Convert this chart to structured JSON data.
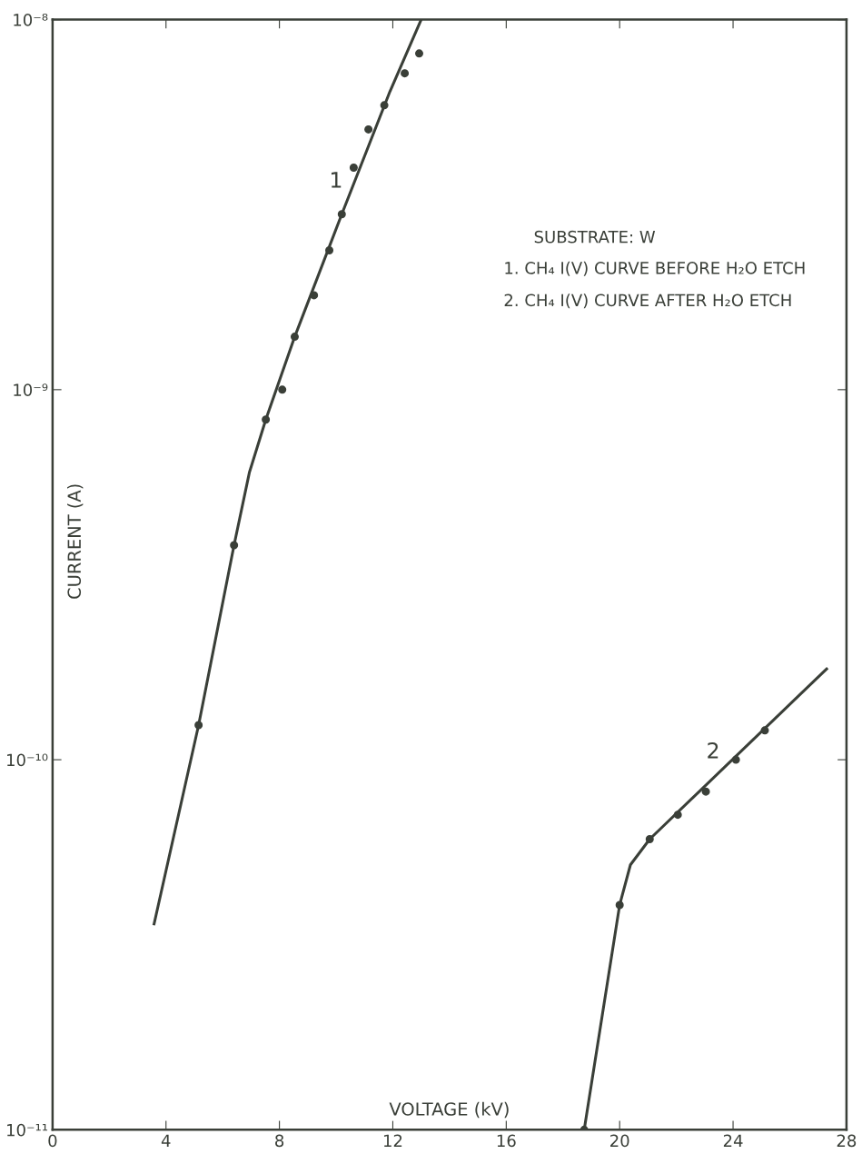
{
  "chart_data": {
    "type": "scatter",
    "xlabel": "VOLTAGE (kV)",
    "ylabel": "CURRENT (A)",
    "log": "y",
    "xlim": [
      0,
      28
    ],
    "ylim": [
      1e-11,
      1e-08
    ],
    "xticks": [
      0,
      4,
      8,
      12,
      16,
      20,
      24,
      28
    ],
    "yticks": [
      {
        "value": 1e-11,
        "label": "10⁻¹¹"
      },
      {
        "value": 1e-10,
        "label": "10⁻¹⁰"
      },
      {
        "value": 1e-09,
        "label": "10⁻⁹"
      },
      {
        "value": 1e-08,
        "label": "10⁻⁸"
      }
    ],
    "grid": false,
    "marker": "circle",
    "series": [
      {
        "color": "#3a3f38",
        "x": [
          5.15,
          6.4,
          7.52,
          8.1,
          8.54,
          9.22,
          9.76,
          10.2,
          10.62,
          11.14,
          11.7,
          12.42,
          12.93
        ],
        "values": [
          1.24e-10,
          3.8e-10,
          8.3e-10,
          1e-09,
          1.39e-09,
          1.8e-09,
          2.38e-09,
          2.98e-09,
          3.98e-09,
          5.05e-09,
          5.87e-09,
          7.16e-09,
          8.1e-09
        ]
      },
      {
        "type": "line",
        "color": "#3a3f38",
        "line_style": "solid",
        "marker": "none",
        "x": [
          3.58,
          5.15,
          6.4,
          6.94,
          7.52,
          8.54,
          10.2,
          11.9,
          13.0
        ],
        "values": [
          3.6e-11,
          1.24e-10,
          3.8e-10,
          5.97e-10,
          8.3e-10,
          1.39e-09,
          2.98e-09,
          6.4e-09,
          1e-08
        ]
      },
      {
        "color": "#3a3f38",
        "x": [
          18.75,
          20.0,
          21.06,
          22.05,
          23.04,
          24.1,
          25.12
        ],
        "values": [
          1e-11,
          4.05e-11,
          6.1e-11,
          7.1e-11,
          8.2e-11,
          1e-10,
          1.2e-10
        ]
      },
      {
        "type": "line",
        "color": "#3a3f38",
        "line_style": "solid",
        "marker": "none",
        "x": [
          18.75,
          20.0,
          20.38,
          21.06,
          27.3
        ],
        "values": [
          1e-11,
          4.05e-11,
          5.2e-11,
          6.1e-11,
          1.76e-10
        ]
      }
    ],
    "annotations": [
      "1",
      "2",
      "SUBSTRATE: W",
      "1. CH₄ I(V) CURVE BEFORE H₂O ETCH",
      "2. CH₄ I(V) CURVE AFTER H₂O ETCH"
    ]
  }
}
